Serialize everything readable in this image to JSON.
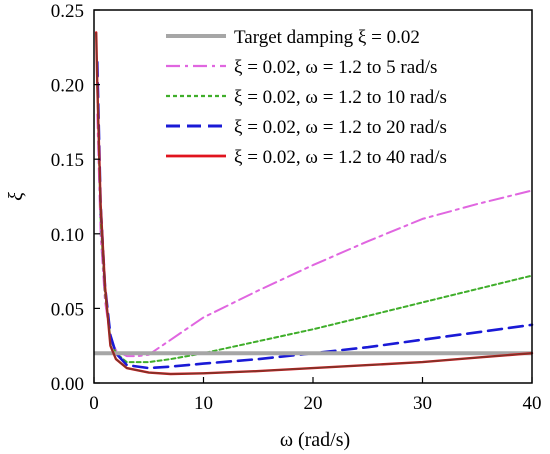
{
  "chart_data": {
    "type": "line",
    "xlabel": "ω (rad/s)",
    "ylabel": "ξ",
    "xlim": [
      0,
      40
    ],
    "ylim": [
      0,
      0.25
    ],
    "xticks": [
      "0",
      "10",
      "20",
      "30",
      "40"
    ],
    "yticks": [
      "0.00",
      "0.05",
      "0.10",
      "0.15",
      "0.20",
      "0.25"
    ],
    "grid": false,
    "legend_position": "top-right",
    "series": [
      {
        "name": "Target damping ξ = 0.02",
        "color": "#a6a6a6",
        "style": "solid",
        "x": [
          0,
          40
        ],
        "y": [
          0.02,
          0.02
        ]
      },
      {
        "name": "ξ = 0.02, ω = 1.2 to 5 rad/s",
        "color": "#e066e0",
        "style": "dashdot",
        "x": [
          0.3,
          0.6,
          1.0,
          1.5,
          2.0,
          3.0,
          4.0,
          5.0,
          10,
          15,
          20,
          25,
          30,
          35,
          40
        ],
        "y": [
          0.18,
          0.1,
          0.055,
          0.03,
          0.022,
          0.018,
          0.018,
          0.019,
          0.044,
          0.062,
          0.079,
          0.095,
          0.11,
          0.12,
          0.129
        ]
      },
      {
        "name": "ξ = 0.02, ω = 1.2 to 10 rad/s",
        "color": "#3fae2a",
        "style": "dotted",
        "x": [
          0.3,
          0.6,
          1.0,
          1.5,
          2.0,
          3.0,
          5.0,
          7.0,
          10,
          15,
          20,
          25,
          30,
          35,
          40
        ],
        "y": [
          0.2,
          0.11,
          0.06,
          0.03,
          0.02,
          0.014,
          0.014,
          0.016,
          0.02,
          0.028,
          0.036,
          0.045,
          0.054,
          0.063,
          0.072
        ]
      },
      {
        "name": "ξ = 0.02, ω = 1.2 to 20 rad/s",
        "color": "#1a1ad6",
        "style": "dashed",
        "x": [
          0.3,
          0.6,
          1.0,
          1.5,
          2.0,
          3.0,
          5.0,
          7.0,
          10,
          15,
          20,
          25,
          30,
          35,
          40
        ],
        "y": [
          0.215,
          0.12,
          0.065,
          0.032,
          0.02,
          0.012,
          0.01,
          0.011,
          0.013,
          0.016,
          0.02,
          0.024,
          0.029,
          0.034,
          0.039
        ]
      },
      {
        "name": "ξ = 0.02, ω = 1.2 to 40 rad/s",
        "color": "#e0141e",
        "style": "solid",
        "x": [
          0.2,
          0.3,
          0.6,
          1.0,
          1.5,
          2.0,
          3.0,
          5.0,
          7.0,
          10,
          15,
          20,
          25,
          30,
          35,
          40
        ],
        "y": [
          0.235,
          0.2,
          0.12,
          0.065,
          0.025,
          0.016,
          0.01,
          0.007,
          0.006,
          0.0065,
          0.008,
          0.01,
          0.012,
          0.014,
          0.017,
          0.02
        ]
      }
    ],
    "overlay": {
      "name": "combined-curve",
      "color": "#6b3a2a",
      "x": [
        0.2,
        0.3,
        0.6,
        1.0,
        1.5,
        2.0,
        3.0,
        5.0,
        7.0,
        10,
        15,
        20,
        25,
        30,
        35,
        40
      ],
      "y": [
        0.235,
        0.2,
        0.12,
        0.065,
        0.025,
        0.016,
        0.01,
        0.007,
        0.006,
        0.0065,
        0.008,
        0.01,
        0.012,
        0.014,
        0.017,
        0.02
      ]
    }
  }
}
